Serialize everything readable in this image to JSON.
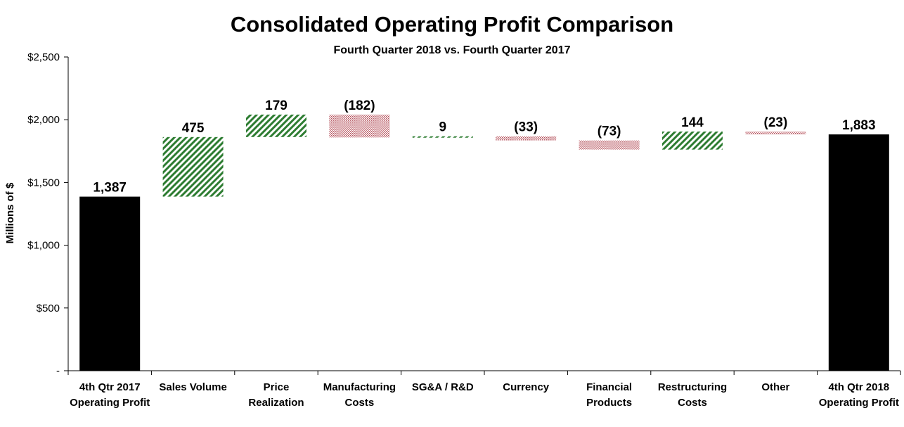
{
  "chart_data": {
    "type": "bar",
    "subtype": "waterfall",
    "title": "Consolidated Operating Profit Comparison",
    "subtitle": "Fourth Quarter 2018 vs. Fourth Quarter 2017",
    "ylabel": "Millions of $",
    "ylim": [
      0,
      2500
    ],
    "yticks": [
      0,
      500,
      1000,
      1500,
      2000,
      2500
    ],
    "ytick_labels": [
      "-",
      "$500",
      "$1,000",
      "$1,500",
      "$2,000",
      "$2,500"
    ],
    "bars": [
      {
        "category": [
          "4th Qtr 2017",
          "Operating Profit"
        ],
        "kind": "total",
        "value": 1387,
        "label": "1,387"
      },
      {
        "category": [
          "Sales Volume"
        ],
        "kind": "increase",
        "value": 475,
        "label": "475"
      },
      {
        "category": [
          "Price",
          "Realization"
        ],
        "kind": "increase",
        "value": 179,
        "label": "179"
      },
      {
        "category": [
          "Manufacturing",
          "Costs"
        ],
        "kind": "decrease",
        "value": -182,
        "label": "(182)"
      },
      {
        "category": [
          "SG&A / R&D"
        ],
        "kind": "increase",
        "value": 9,
        "label": "9"
      },
      {
        "category": [
          "Currency"
        ],
        "kind": "decrease",
        "value": -33,
        "label": "(33)"
      },
      {
        "category": [
          "Financial",
          "Products"
        ],
        "kind": "decrease",
        "value": -73,
        "label": "(73)"
      },
      {
        "category": [
          "Restructuring",
          "Costs"
        ],
        "kind": "increase",
        "value": 144,
        "label": "144"
      },
      {
        "category": [
          "Other"
        ],
        "kind": "decrease",
        "value": -23,
        "label": "(23)"
      },
      {
        "category": [
          "4th Qtr 2018",
          "Operating Profit"
        ],
        "kind": "total",
        "value": 1883,
        "label": "1,883"
      }
    ],
    "colors": {
      "total": "#000000",
      "increase": "#2e7d32",
      "decrease": "#b5555f"
    }
  }
}
